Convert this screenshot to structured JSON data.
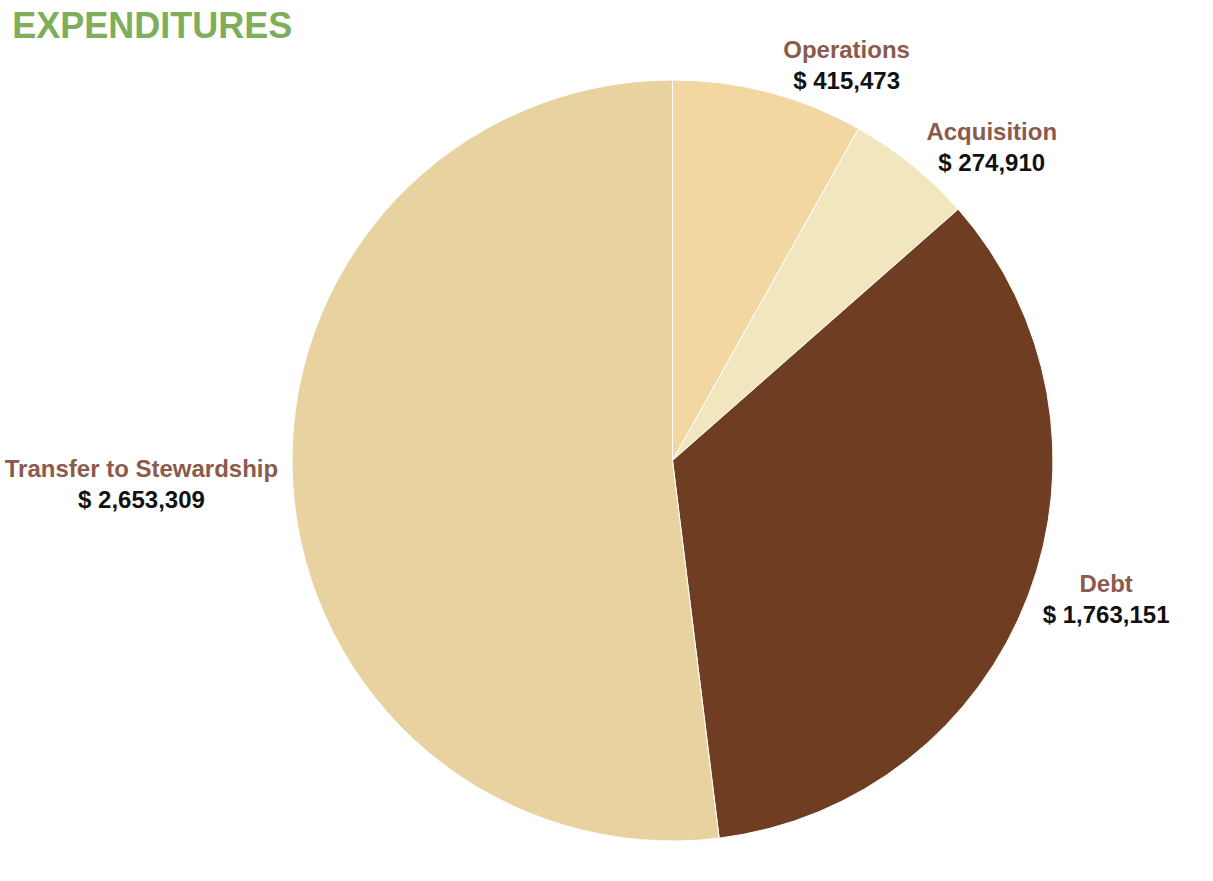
{
  "chart_data": {
    "type": "pie",
    "title": "EXPENDITURES",
    "categories": [
      "Operations",
      "Acquisition",
      "Debt",
      "Transfer to Stewardship"
    ],
    "values": [
      415473,
      274910,
      1763151,
      2653309
    ],
    "value_labels": [
      "$ 415,473",
      "$ 274,910",
      "$ 1,763,151",
      "$ 2,653,309"
    ],
    "colors": [
      "#f3d7a2",
      "#f1e6bd",
      "#6e3d22",
      "#e8d2a0"
    ],
    "data_labels": true
  }
}
